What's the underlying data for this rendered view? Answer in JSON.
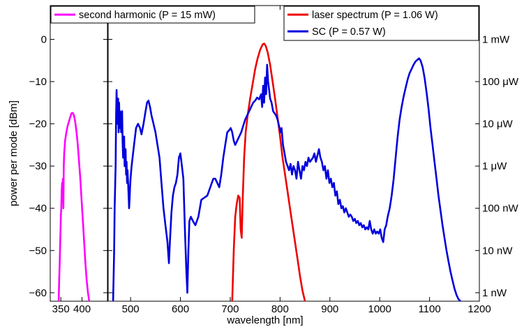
{
  "chart_data": {
    "type": "line",
    "xlabel": "wavelength [nm]",
    "ylabel": "power per mode [dBm]",
    "left_panel": {
      "xlim": [
        325,
        460
      ],
      "xticks": [
        350,
        400
      ],
      "xtick_labels": [
        "350",
        "400"
      ],
      "ylim": [
        -62,
        8
      ]
    },
    "main_panel": {
      "xlim": [
        455,
        1200
      ],
      "xticks": [
        500,
        600,
        700,
        800,
        900,
        1000,
        1100,
        1200
      ],
      "xtick_labels": [
        "500",
        "600",
        "700",
        "800",
        "900",
        "1000",
        "1100",
        "1200"
      ],
      "ylim": [
        -62,
        8
      ]
    },
    "yticks": [
      0,
      -10,
      -20,
      -30,
      -40,
      -50,
      -60
    ],
    "ytick_labels": [
      "0",
      "−10",
      "−20",
      "−30",
      "−40",
      "−50",
      "−60"
    ],
    "right_axis": {
      "ticks_dbm": [
        0,
        -10,
        -20,
        -30,
        -40,
        -50,
        -60
      ],
      "tick_labels": [
        "1 mW",
        "100 μW",
        "10 μW",
        "1 μW",
        "100 nW",
        "10 nW",
        "1 nW"
      ]
    },
    "grid": false,
    "legend_left": "second harmonic (P = 15 mW)",
    "legend_right": [
      "laser spectrum (P = 1.06 W)",
      "SC (P = 0.57 W)"
    ],
    "series": [
      {
        "name": "second harmonic (P = 15 mW)",
        "color": "#ff00ff",
        "panel": "left",
        "points": [
          [
            345,
            -62
          ],
          [
            346,
            -57
          ],
          [
            347,
            -54
          ],
          [
            348,
            -50
          ],
          [
            349,
            -46
          ],
          [
            350,
            -42
          ],
          [
            351,
            -40
          ],
          [
            352,
            -36
          ],
          [
            353,
            -34
          ],
          [
            354,
            -35
          ],
          [
            355,
            -33
          ],
          [
            356,
            -40
          ],
          [
            357,
            -30
          ],
          [
            358,
            -27
          ],
          [
            360,
            -24
          ],
          [
            363,
            -22
          ],
          [
            366,
            -20.5
          ],
          [
            369,
            -19.5
          ],
          [
            372,
            -18.5
          ],
          [
            375,
            -17.5
          ],
          [
            378,
            -17.4
          ],
          [
            381,
            -18
          ],
          [
            384,
            -19.5
          ],
          [
            387,
            -22
          ],
          [
            390,
            -25
          ],
          [
            393,
            -29
          ],
          [
            396,
            -33
          ],
          [
            399,
            -38
          ],
          [
            402,
            -43
          ],
          [
            405,
            -48
          ],
          [
            408,
            -53
          ],
          [
            411,
            -57
          ],
          [
            414,
            -60
          ],
          [
            417,
            -62
          ]
        ]
      },
      {
        "name": "laser spectrum (P = 1.06 W)",
        "color": "#ee0000",
        "panel": "main",
        "points": [
          [
            704,
            -62
          ],
          [
            707,
            -50
          ],
          [
            710,
            -42
          ],
          [
            713,
            -39
          ],
          [
            716,
            -37
          ],
          [
            719,
            -37.5
          ],
          [
            721,
            -45
          ],
          [
            723,
            -47
          ],
          [
            725,
            -38
          ],
          [
            728,
            -28
          ],
          [
            731,
            -22
          ],
          [
            735,
            -18
          ],
          [
            740,
            -14
          ],
          [
            745,
            -10.5
          ],
          [
            750,
            -7
          ],
          [
            755,
            -4.5
          ],
          [
            760,
            -2.5
          ],
          [
            765,
            -1.2
          ],
          [
            768,
            -1
          ],
          [
            771,
            -1.5
          ],
          [
            775,
            -3
          ],
          [
            780,
            -6
          ],
          [
            785,
            -10
          ],
          [
            790,
            -14
          ],
          [
            795,
            -18.5
          ],
          [
            800,
            -23
          ],
          [
            805,
            -28
          ],
          [
            810,
            -32
          ],
          [
            815,
            -36
          ],
          [
            820,
            -40
          ],
          [
            825,
            -44
          ],
          [
            830,
            -48
          ],
          [
            835,
            -52
          ],
          [
            840,
            -56
          ],
          [
            845,
            -59.5
          ],
          [
            850,
            -62
          ]
        ]
      },
      {
        "name": "SC (P = 0.57 W)",
        "color": "#0000dd",
        "panel": "main",
        "points": [
          [
            465,
            -62
          ],
          [
            467,
            -50
          ],
          [
            468,
            -40
          ],
          [
            470,
            -30
          ],
          [
            471,
            -18
          ],
          [
            472,
            -12
          ],
          [
            473,
            -20
          ],
          [
            474,
            -19
          ],
          [
            475,
            -14
          ],
          [
            476,
            -22
          ],
          [
            477,
            -15
          ],
          [
            478,
            -21
          ],
          [
            479,
            -17
          ],
          [
            480,
            -18
          ],
          [
            481,
            -22
          ],
          [
            482,
            -20
          ],
          [
            483,
            -17
          ],
          [
            484,
            -24
          ],
          [
            485,
            -28
          ],
          [
            486,
            -26
          ],
          [
            487,
            -23
          ],
          [
            488,
            -30
          ],
          [
            489,
            -27
          ],
          [
            490,
            -26
          ],
          [
            491,
            -32
          ],
          [
            492,
            -29
          ],
          [
            493,
            -34
          ],
          [
            494,
            -31
          ],
          [
            495,
            -34
          ],
          [
            496,
            -37
          ],
          [
            497,
            -40
          ],
          [
            498,
            -38
          ],
          [
            499,
            -35
          ],
          [
            500,
            -33
          ],
          [
            502,
            -30
          ],
          [
            505,
            -27
          ],
          [
            508,
            -24
          ],
          [
            511,
            -21
          ],
          [
            515,
            -20
          ],
          [
            519,
            -21
          ],
          [
            522,
            -22.5
          ],
          [
            526,
            -20
          ],
          [
            530,
            -17
          ],
          [
            533,
            -15
          ],
          [
            536,
            -14.5
          ],
          [
            539,
            -16
          ],
          [
            542,
            -18
          ],
          [
            546,
            -20
          ],
          [
            550,
            -22
          ],
          [
            554,
            -25
          ],
          [
            558,
            -28
          ],
          [
            562,
            -34
          ],
          [
            566,
            -40
          ],
          [
            570,
            -44
          ],
          [
            574,
            -48
          ],
          [
            577,
            -53
          ],
          [
            579,
            -48
          ],
          [
            582,
            -41
          ],
          [
            585,
            -37
          ],
          [
            588,
            -35
          ],
          [
            591,
            -34
          ],
          [
            594,
            -32
          ],
          [
            597,
            -28
          ],
          [
            600,
            -27
          ],
          [
            603,
            -30
          ],
          [
            606,
            -33
          ],
          [
            609,
            -45
          ],
          [
            612,
            -55
          ],
          [
            614,
            -60
          ],
          [
            616,
            -50
          ],
          [
            618,
            -43
          ],
          [
            621,
            -42
          ],
          [
            625,
            -43
          ],
          [
            630,
            -44
          ],
          [
            636,
            -42
          ],
          [
            642,
            -38
          ],
          [
            648,
            -37.5
          ],
          [
            654,
            -37
          ],
          [
            660,
            -35
          ],
          [
            666,
            -33
          ],
          [
            670,
            -33
          ],
          [
            674,
            -34
          ],
          [
            678,
            -35
          ],
          [
            682,
            -32
          ],
          [
            686,
            -28
          ],
          [
            690,
            -25
          ],
          [
            694,
            -22
          ],
          [
            698,
            -21.5
          ],
          [
            701,
            -21
          ],
          [
            704,
            -22
          ],
          [
            707,
            -24
          ],
          [
            710,
            -25
          ],
          [
            714,
            -24
          ],
          [
            718,
            -23
          ],
          [
            722,
            -22
          ],
          [
            726,
            -20.5
          ],
          [
            730,
            -19
          ],
          [
            734,
            -18
          ],
          [
            738,
            -17
          ],
          [
            742,
            -16
          ],
          [
            746,
            -15
          ],
          [
            750,
            -14.5
          ],
          [
            754,
            -13.8
          ],
          [
            758,
            -14.2
          ],
          [
            762,
            -13
          ],
          [
            764,
            -16
          ],
          [
            766,
            -11
          ],
          [
            768,
            -15
          ],
          [
            770,
            -9
          ],
          [
            772,
            -13
          ],
          [
            774,
            -6
          ],
          [
            776,
            -10
          ],
          [
            778,
            -12
          ],
          [
            780,
            -14
          ],
          [
            783,
            -15
          ],
          [
            786,
            -17
          ],
          [
            789,
            -17.5
          ],
          [
            792,
            -18
          ],
          [
            795,
            -19
          ],
          [
            798,
            -20.5
          ],
          [
            801,
            -22
          ],
          [
            803,
            -21
          ],
          [
            806,
            -25
          ],
          [
            809,
            -27
          ],
          [
            812,
            -29
          ],
          [
            815,
            -30
          ],
          [
            818,
            -31
          ],
          [
            821,
            -29.5
          ],
          [
            824,
            -32
          ],
          [
            827,
            -30
          ],
          [
            830,
            -31
          ],
          [
            833,
            -33
          ],
          [
            836,
            -29
          ],
          [
            839,
            -31
          ],
          [
            842,
            -33
          ],
          [
            845,
            -30
          ],
          [
            848,
            -31
          ],
          [
            851,
            -29
          ],
          [
            854,
            -30
          ],
          [
            857,
            -28
          ],
          [
            860,
            -29
          ],
          [
            863,
            -28.5
          ],
          [
            866,
            -28
          ],
          [
            869,
            -27
          ],
          [
            872,
            -29
          ],
          [
            875,
            -27.5
          ],
          [
            878,
            -26
          ],
          [
            881,
            -28
          ],
          [
            884,
            -29
          ],
          [
            887,
            -31
          ],
          [
            890,
            -30
          ],
          [
            893,
            -33
          ],
          [
            896,
            -31
          ],
          [
            899,
            -34
          ],
          [
            902,
            -33
          ],
          [
            905,
            -35
          ],
          [
            908,
            -34
          ],
          [
            911,
            -37
          ],
          [
            914,
            -36
          ],
          [
            917,
            -39
          ],
          [
            920,
            -38
          ],
          [
            923,
            -40
          ],
          [
            926,
            -39.5
          ],
          [
            929,
            -41
          ],
          [
            932,
            -40
          ],
          [
            935,
            -41
          ],
          [
            938,
            -42
          ],
          [
            941,
            -41.5
          ],
          [
            944,
            -42
          ],
          [
            947,
            -43
          ],
          [
            950,
            -42.5
          ],
          [
            953,
            -43.5
          ],
          [
            956,
            -43
          ],
          [
            959,
            -44
          ],
          [
            962,
            -43.5
          ],
          [
            965,
            -44.5
          ],
          [
            968,
            -44
          ],
          [
            971,
            -45
          ],
          [
            974,
            -44.5
          ],
          [
            977,
            -45
          ],
          [
            980,
            -43
          ],
          [
            983,
            -45
          ],
          [
            986,
            -46
          ],
          [
            989,
            -45
          ],
          [
            992,
            -46
          ],
          [
            995,
            -45.5
          ],
          [
            998,
            -46
          ],
          [
            1001,
            -45
          ],
          [
            1004,
            -47
          ],
          [
            1007,
            -48
          ],
          [
            1010,
            -45
          ],
          [
            1013,
            -44
          ],
          [
            1016,
            -42
          ],
          [
            1020,
            -40
          ],
          [
            1024,
            -37
          ],
          [
            1028,
            -33
          ],
          [
            1032,
            -28
          ],
          [
            1036,
            -23
          ],
          [
            1040,
            -19
          ],
          [
            1044,
            -16
          ],
          [
            1048,
            -13.5
          ],
          [
            1052,
            -11.5
          ],
          [
            1056,
            -9.5
          ],
          [
            1060,
            -8
          ],
          [
            1064,
            -7
          ],
          [
            1068,
            -6
          ],
          [
            1072,
            -5.2
          ],
          [
            1076,
            -4.8
          ],
          [
            1079,
            -4.5
          ],
          [
            1082,
            -5
          ],
          [
            1086,
            -6.5
          ],
          [
            1090,
            -9
          ],
          [
            1094,
            -12.5
          ],
          [
            1098,
            -16.5
          ],
          [
            1102,
            -21
          ],
          [
            1106,
            -25
          ],
          [
            1110,
            -29
          ],
          [
            1114,
            -33
          ],
          [
            1118,
            -37
          ],
          [
            1122,
            -40.5
          ],
          [
            1126,
            -44
          ],
          [
            1130,
            -47
          ],
          [
            1134,
            -50
          ],
          [
            1138,
            -52.5
          ],
          [
            1142,
            -55
          ],
          [
            1146,
            -57
          ],
          [
            1150,
            -59
          ],
          [
            1154,
            -60.5
          ],
          [
            1158,
            -61.5
          ],
          [
            1162,
            -62
          ]
        ]
      }
    ]
  }
}
